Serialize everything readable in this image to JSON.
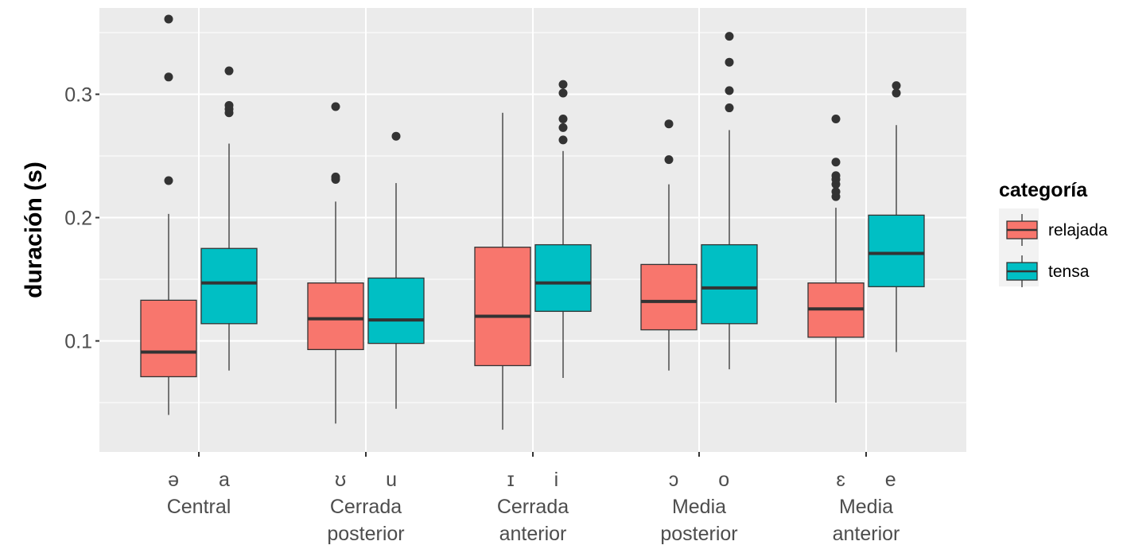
{
  "chart_data": {
    "type": "box",
    "ylabel": "duración (s)",
    "y_ticks": [
      "0.1",
      "0.2",
      "0.3"
    ],
    "y_tick_values": [
      0.1,
      0.2,
      0.3
    ],
    "ylim": [
      0.01,
      0.37
    ],
    "grid": true,
    "legend": {
      "title": "categoría",
      "position": "right",
      "entries": [
        {
          "label": "relajada",
          "color": "#F8766D"
        },
        {
          "label": "tensa",
          "color": "#00BFC4"
        }
      ]
    },
    "groups": [
      {
        "vowels": [
          "ə",
          "a"
        ],
        "label_lines": [
          "Central"
        ]
      },
      {
        "vowels": [
          "ʊ",
          "u"
        ],
        "label_lines": [
          "Cerrada",
          "posterior"
        ]
      },
      {
        "vowels": [
          "ɪ",
          "i"
        ],
        "label_lines": [
          "Cerrada",
          "anterior"
        ]
      },
      {
        "vowels": [
          "ɔ",
          "o"
        ],
        "label_lines": [
          "Media",
          "posterior"
        ]
      },
      {
        "vowels": [
          "ɛ",
          "e"
        ],
        "label_lines": [
          "Media",
          "anterior"
        ]
      }
    ],
    "boxes": [
      {
        "group": 0,
        "series": "relajada",
        "min": 0.04,
        "q1": 0.071,
        "median": 0.091,
        "q3": 0.133,
        "max": 0.203,
        "outliers": [
          0.23,
          0.314,
          0.361
        ]
      },
      {
        "group": 0,
        "series": "tensa",
        "min": 0.076,
        "q1": 0.114,
        "median": 0.147,
        "q3": 0.175,
        "max": 0.26,
        "outliers": [
          0.285,
          0.288,
          0.291,
          0.319
        ]
      },
      {
        "group": 1,
        "series": "relajada",
        "min": 0.033,
        "q1": 0.093,
        "median": 0.118,
        "q3": 0.147,
        "max": 0.213,
        "outliers": [
          0.231,
          0.233,
          0.29
        ]
      },
      {
        "group": 1,
        "series": "tensa",
        "min": 0.045,
        "q1": 0.098,
        "median": 0.117,
        "q3": 0.151,
        "max": 0.228,
        "outliers": [
          0.266
        ]
      },
      {
        "group": 2,
        "series": "relajada",
        "min": 0.028,
        "q1": 0.08,
        "median": 0.12,
        "q3": 0.176,
        "max": 0.285,
        "outliers": []
      },
      {
        "group": 2,
        "series": "tensa",
        "min": 0.07,
        "q1": 0.124,
        "median": 0.147,
        "q3": 0.178,
        "max": 0.254,
        "outliers": [
          0.263,
          0.273,
          0.28,
          0.301,
          0.308
        ]
      },
      {
        "group": 3,
        "series": "relajada",
        "min": 0.076,
        "q1": 0.109,
        "median": 0.132,
        "q3": 0.162,
        "max": 0.227,
        "outliers": [
          0.247,
          0.276
        ]
      },
      {
        "group": 3,
        "series": "tensa",
        "min": 0.077,
        "q1": 0.114,
        "median": 0.143,
        "q3": 0.178,
        "max": 0.271,
        "outliers": [
          0.289,
          0.303,
          0.326,
          0.347
        ]
      },
      {
        "group": 4,
        "series": "relajada",
        "min": 0.05,
        "q1": 0.103,
        "median": 0.126,
        "q3": 0.147,
        "max": 0.208,
        "outliers": [
          0.217,
          0.221,
          0.227,
          0.231,
          0.234,
          0.245,
          0.28
        ]
      },
      {
        "group": 4,
        "series": "tensa",
        "min": 0.091,
        "q1": 0.144,
        "median": 0.171,
        "q3": 0.202,
        "max": 0.275,
        "outliers": [
          0.301,
          0.307
        ]
      }
    ]
  }
}
